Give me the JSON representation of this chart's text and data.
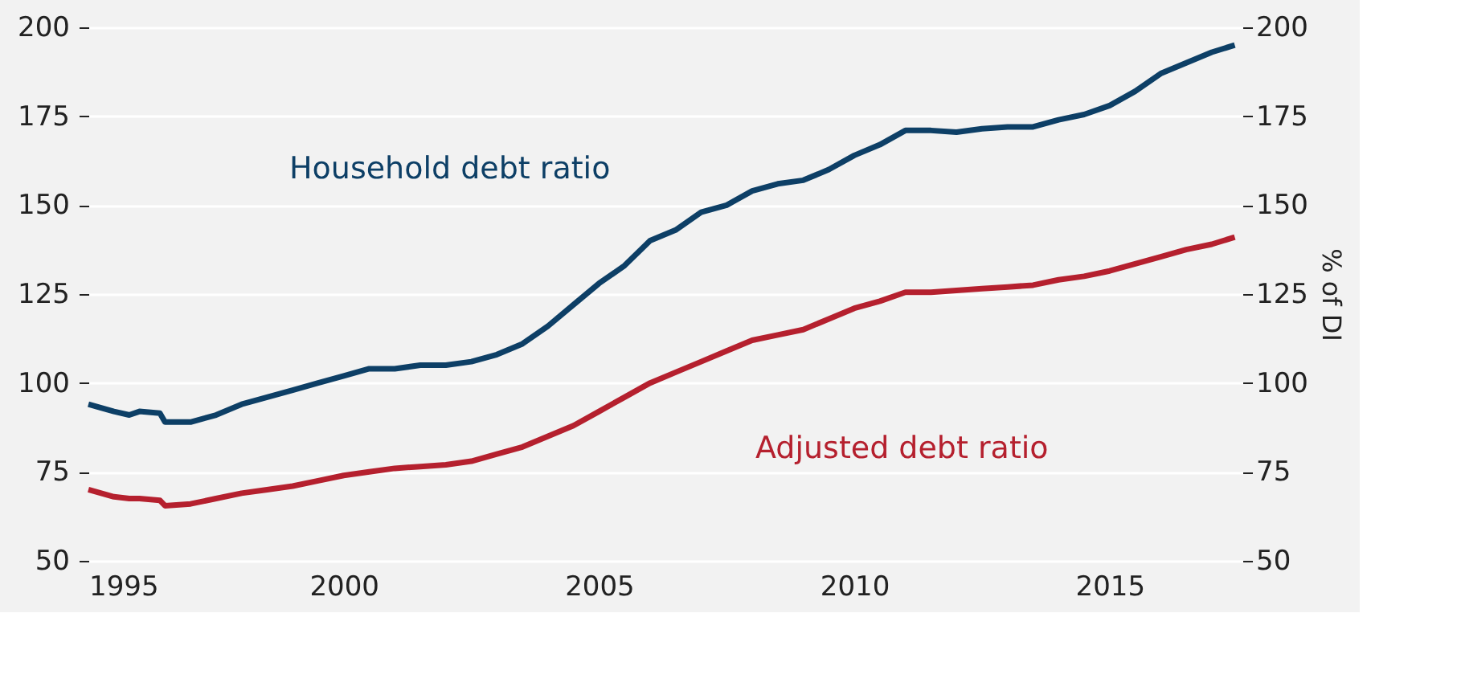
{
  "chart_data": {
    "type": "line",
    "y2label": "% of DI",
    "xlim": [
      1995,
      2017.6
    ],
    "xticks": [
      1995,
      2000,
      2005,
      2010,
      2015
    ],
    "ylim": [
      50,
      200
    ],
    "yticks": [
      50,
      75,
      100,
      125,
      150,
      175,
      200
    ],
    "y2lim": [
      50,
      200
    ],
    "y2ticks": [
      50,
      75,
      100,
      125,
      150,
      175,
      200
    ],
    "grid": "y",
    "legend": false,
    "marker": "none",
    "line_style": "solid",
    "x": [
      1995.0,
      1995.5,
      1995.8,
      1996.0,
      1996.4,
      1996.5,
      1997.0,
      1997.5,
      1998.0,
      1998.5,
      1999.0,
      1999.5,
      2000.0,
      2000.5,
      2001.0,
      2001.5,
      2002.0,
      2002.5,
      2003.0,
      2003.5,
      2004.0,
      2004.5,
      2005.0,
      2005.5,
      2006.0,
      2006.5,
      2007.0,
      2007.5,
      2008.0,
      2008.5,
      2009.0,
      2009.5,
      2010.0,
      2010.5,
      2011.0,
      2011.5,
      2012.0,
      2012.5,
      2013.0,
      2013.5,
      2014.0,
      2014.5,
      2015.0,
      2015.5,
      2016.0,
      2016.5,
      2017.0,
      2017.45
    ],
    "series": [
      {
        "name": "Household debt ratio",
        "color": "#0d3f66",
        "values": [
          94,
          92,
          91,
          92,
          91.5,
          89,
          89,
          91,
          94,
          96,
          98,
          100,
          102,
          104,
          104,
          105,
          105,
          106,
          108,
          111,
          116,
          122,
          128,
          133,
          140,
          143,
          148,
          150,
          154,
          156,
          157,
          160,
          164,
          167,
          171,
          171,
          170.5,
          171.5,
          172,
          172,
          174,
          175.5,
          178,
          182,
          187,
          190,
          193,
          195
        ]
      },
      {
        "name": "Adjusted debt ratio",
        "color": "#b5202e",
        "values": [
          70,
          68,
          67.5,
          67.5,
          67,
          65.5,
          66,
          67.5,
          69,
          70,
          71,
          72.5,
          74,
          75,
          76,
          76.5,
          77,
          78,
          80,
          82,
          85,
          88,
          92,
          96,
          100,
          103,
          106,
          109,
          112,
          113.5,
          115,
          118,
          121,
          123,
          125.5,
          125.5,
          126,
          126.5,
          127,
          127.5,
          129,
          130,
          131.5,
          133.5,
          135.5,
          137.5,
          139,
          141
        ]
      }
    ]
  }
}
